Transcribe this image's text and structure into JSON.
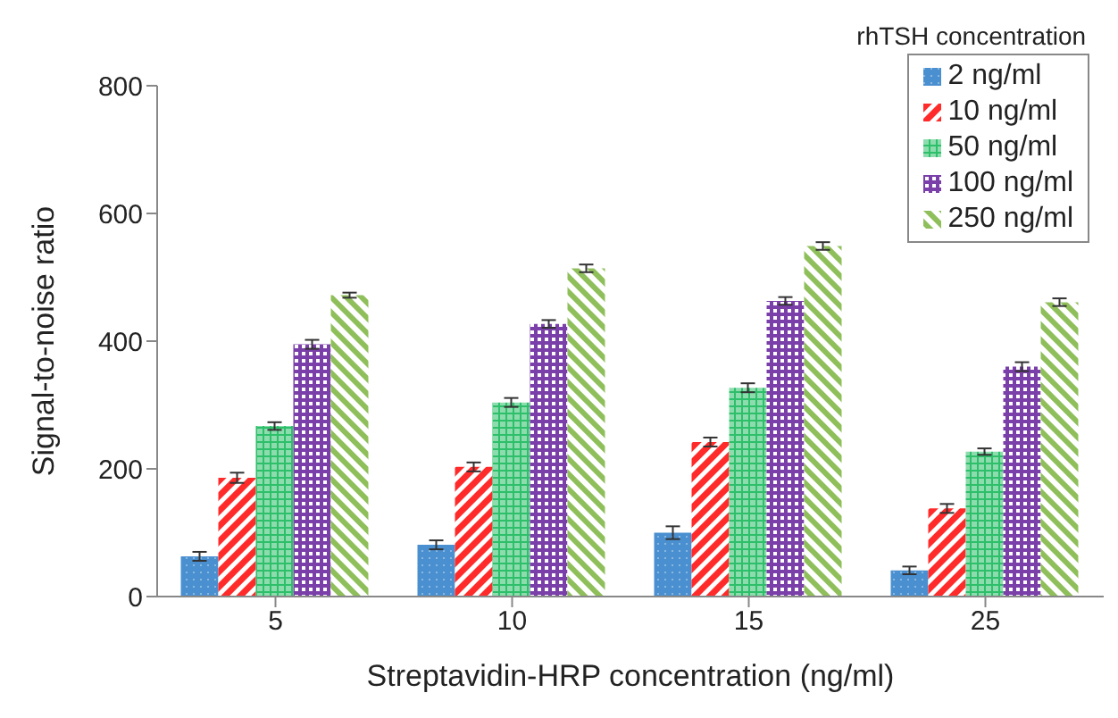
{
  "chart_data": {
    "type": "bar",
    "xlabel": "Streptavidin-HRP concentration (ng/ml)",
    "ylabel": "Signal-to-noise ratio",
    "legend_title": "rhTSH concentration",
    "categories": [
      "5",
      "10",
      "15",
      "25"
    ],
    "series": [
      {
        "name": "2 ng/ml",
        "color": "#4a90d0",
        "values": [
          63,
          81,
          100,
          41
        ],
        "errors": [
          7,
          7,
          10,
          6
        ]
      },
      {
        "name": "10 ng/ml",
        "color": "#ff2a2a",
        "values": [
          186,
          203,
          242,
          138
        ],
        "errors": [
          8,
          7,
          7,
          7
        ]
      },
      {
        "name": "50 ng/ml",
        "color": "#2ebf6a",
        "values": [
          267,
          304,
          327,
          227
        ],
        "errors": [
          6,
          7,
          7,
          5
        ]
      },
      {
        "name": "100 ng/ml",
        "color": "#7a3fa8",
        "values": [
          395,
          427,
          463,
          360
        ],
        "errors": [
          7,
          6,
          6,
          7
        ]
      },
      {
        "name": "250 ng/ml",
        "color": "#8fbf5a",
        "values": [
          472,
          514,
          549,
          461
        ],
        "errors": [
          4,
          6,
          6,
          6
        ]
      }
    ],
    "ylim": [
      0,
      800
    ],
    "yticks": [
      0,
      200,
      400,
      600,
      800
    ],
    "legend": "top right"
  }
}
